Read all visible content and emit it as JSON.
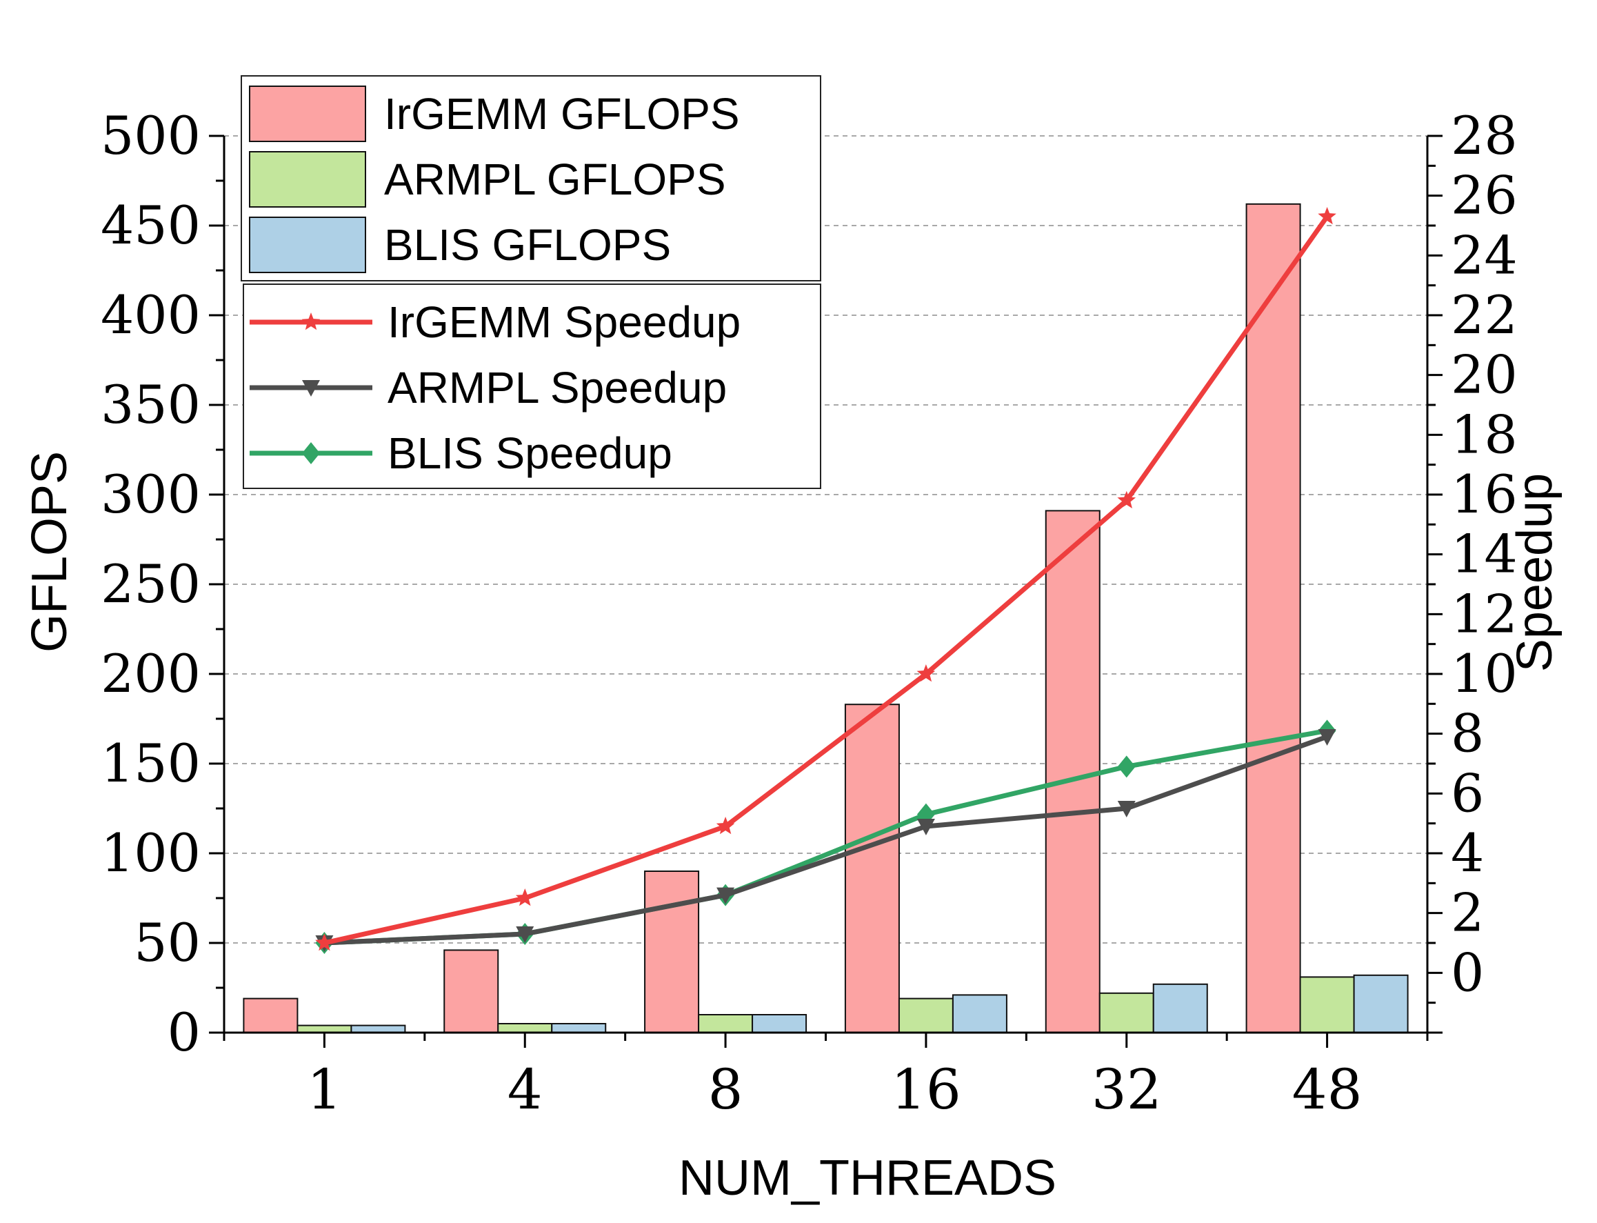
{
  "chart_data": {
    "type": "bar",
    "xlabel": "NUM_THREADS",
    "ylabel": "GFLOPS",
    "y2label": "Speedup",
    "categories": [
      "1",
      "4",
      "8",
      "16",
      "32",
      "48"
    ],
    "ylim": [
      0,
      500
    ],
    "y2lim": [
      -2,
      28
    ],
    "yticks": [
      "0",
      "50",
      "100",
      "150",
      "200",
      "250",
      "300",
      "350",
      "400",
      "450",
      "500"
    ],
    "y2ticks": [
      "0",
      "2",
      "4",
      "6",
      "8",
      "10",
      "12",
      "14",
      "16",
      "18",
      "20",
      "22",
      "24",
      "26",
      "28"
    ],
    "grid": "horizontal dashed",
    "legend_placement": "top-left",
    "bar_series": [
      {
        "name": "IrGEMM GFLOPS",
        "color": "#fca3a3",
        "values": [
          19,
          46,
          90,
          183,
          291,
          462
        ]
      },
      {
        "name": "ARMPL GFLOPS",
        "color": "#c3e69c",
        "values": [
          4,
          5,
          10,
          19,
          22,
          31
        ]
      },
      {
        "name": "BLIS GFLOPS",
        "color": "#aed0e6",
        "values": [
          4,
          5,
          10,
          21,
          27,
          32
        ]
      }
    ],
    "line_series": [
      {
        "name": "IrGEMM Speedup",
        "color": "#ee3e3e",
        "marker": "star",
        "values": [
          1.0,
          2.5,
          4.9,
          10.0,
          15.8,
          25.3
        ]
      },
      {
        "name": "ARMPL Speedup",
        "color": "#4d4d4d",
        "marker": "triangle-down",
        "values": [
          1.0,
          1.3,
          2.6,
          4.9,
          5.5,
          7.9
        ]
      },
      {
        "name": "BLIS Speedup",
        "color": "#31a565",
        "marker": "diamond",
        "values": [
          1.0,
          1.3,
          2.6,
          5.3,
          6.9,
          8.1
        ]
      }
    ]
  }
}
